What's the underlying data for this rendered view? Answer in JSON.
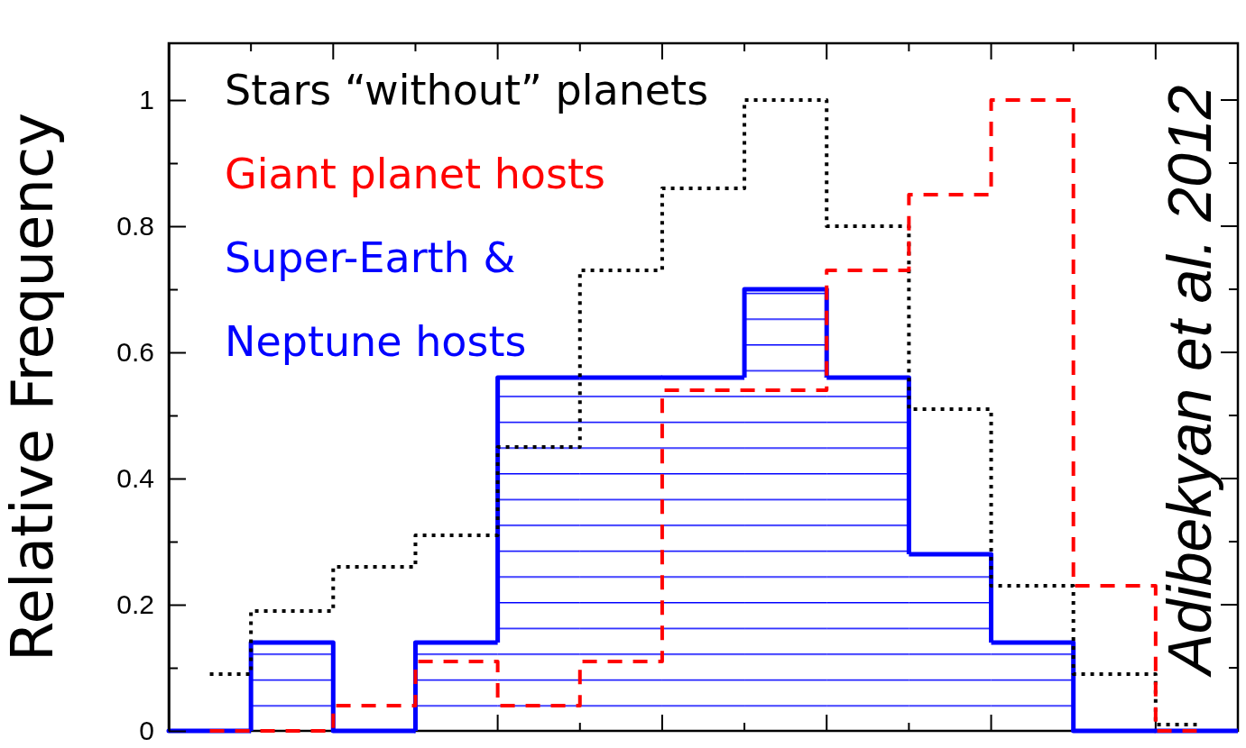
{
  "chart_data": {
    "type": "histogram",
    "ylabel": "Relative Frequency",
    "annotations": [
      "Adibekyan et al. 2012"
    ],
    "categories": [
      null,
      null,
      null,
      null,
      null,
      null,
      null,
      null,
      null,
      null,
      null,
      null,
      null
    ],
    "series": [
      {
        "name": "Stars “without” planets",
        "color": "#000000",
        "type": "step",
        "line_style": "dotted",
        "values": [
          0.09,
          0.19,
          0.26,
          0.31,
          0.45,
          0.73,
          0.86,
          1,
          0.8,
          0.51,
          0.23,
          0.09,
          0.01
        ]
      },
      {
        "name": "Giant planet hosts",
        "color": "#ff0000",
        "type": "step",
        "line_style": "dashed",
        "values": [
          0,
          0,
          0.04,
          0.11,
          0.04,
          0.11,
          0.54,
          0.54,
          0.73,
          0.85,
          1,
          0.23,
          0
        ]
      },
      {
        "name": "Super-Earth & Neptune hosts",
        "color": "#0000ff",
        "values": [
          0,
          0.14,
          0,
          0.14,
          0.56,
          0.56,
          0.56,
          0.7,
          0.56,
          0.28,
          0.14,
          0,
          0
        ]
      }
    ],
    "ylim": [
      0,
      1.09
    ],
    "yticks": [
      0,
      {
        "value": 0.1,
        "label": null
      },
      0.2,
      {
        "value": 0.3,
        "label": null
      },
      0.4,
      {
        "value": 0.5,
        "label": null
      },
      0.6,
      {
        "value": 0.7,
        "label": null
      },
      0.8,
      {
        "value": 0.9,
        "label": null
      },
      1
    ],
    "legend": "top left",
    "tick_labels": "y"
  }
}
